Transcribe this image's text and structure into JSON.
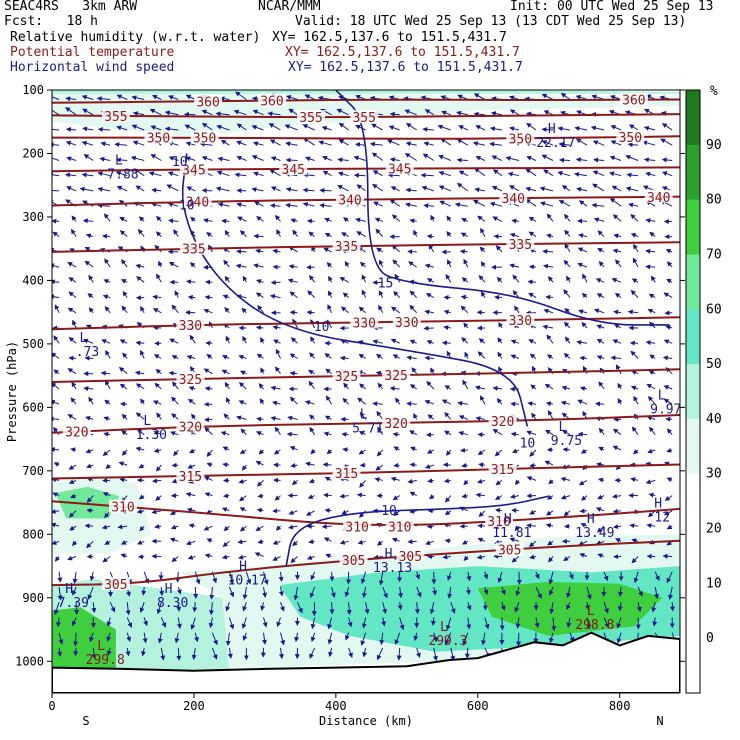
{
  "header": {
    "model": "SEAC4RS   3km ARW",
    "source": "NCAR/MMM",
    "init": "Init: 00 UTC Wed 25 Sep 13",
    "fcst": "Fcst:   18 h",
    "valid": "Valid: 18 UTC Wed 25 Sep 13 (13 CDT Wed 25 Sep 13)",
    "rh_label": "Relative humidity (w.r.t. water)",
    "rh_xy": "XY= 162.5,137.6 to 151.5,431.7",
    "theta_label": "Potential temperature",
    "theta_xy": "XY= 162.5,137.6 to 151.5,431.7",
    "wind_label": "Horizontal wind speed",
    "wind_xy": "XY= 162.5,137.6 to 151.5,431.7"
  },
  "colors": {
    "theta": "#8b1a1a",
    "wind": "#1a1a8c",
    "rh_bins": [
      "#ffffff",
      "#ffffff",
      "#ffffff",
      "#ffffff",
      "#e3f8f0",
      "#b4f2de",
      "#62e6c4",
      "#72e89a",
      "#3ece3e",
      "#2ca02c",
      "#1e7a1e"
    ]
  },
  "chart_data": {
    "type": "cross-section",
    "x_axis": {
      "label": "Distance (km)",
      "range": [
        0,
        885
      ],
      "ticks": [
        0,
        200,
        400,
        600,
        800
      ],
      "left_end": "S",
      "right_end": "N"
    },
    "y_axis": {
      "label": "Pressure (hPa)",
      "range": [
        1050,
        100
      ],
      "ticks": [
        100,
        200,
        300,
        400,
        500,
        600,
        700,
        800,
        900,
        1000
      ]
    },
    "colorbar": {
      "unit": "%",
      "ticks": [
        0,
        10,
        20,
        30,
        40,
        50,
        60,
        70,
        80,
        90
      ]
    },
    "potential_temperature": {
      "contours": [
        {
          "level": 360,
          "points": [
            [
              0,
              120
            ],
            [
              200,
              118
            ],
            [
              450,
              115
            ],
            [
              700,
              116
            ],
            [
              885,
              115
            ]
          ],
          "labels": [
            {
              "text": "360",
              "x": 220
            },
            {
              "text": "360",
              "x": 310
            },
            {
              "text": "360",
              "x": 820
            }
          ]
        },
        {
          "level": 355,
          "points": [
            [
              0,
              140
            ],
            [
              200,
              142
            ],
            [
              430,
              143
            ],
            [
              700,
              140
            ],
            [
              885,
              138
            ]
          ],
          "labels": [
            {
              "text": "355",
              "x": 90
            },
            {
              "text": "355",
              "x": 365
            },
            {
              "text": "355",
              "x": 440
            }
          ]
        },
        {
          "level": 350,
          "points": [
            [
              0,
              175
            ],
            [
              200,
              175
            ],
            [
              500,
              177
            ],
            [
              700,
              176
            ],
            [
              885,
              173
            ]
          ],
          "labels": [
            {
              "text": "350",
              "x": 150
            },
            {
              "text": "350",
              "x": 215
            },
            {
              "text": "350",
              "x": 660
            },
            {
              "text": "350",
              "x": 815
            }
          ]
        },
        {
          "level": 345,
          "points": [
            [
              0,
              228
            ],
            [
              200,
              225
            ],
            [
              450,
              224
            ],
            [
              885,
              222
            ]
          ],
          "labels": [
            {
              "text": "345",
              "x": 200
            },
            {
              "text": "345",
              "x": 340
            },
            {
              "text": "345",
              "x": 490
            }
          ]
        },
        {
          "level": 340,
          "points": [
            [
              0,
              282
            ],
            [
              200,
              276
            ],
            [
              450,
              272
            ],
            [
              700,
              270
            ],
            [
              885,
              268
            ]
          ],
          "labels": [
            {
              "text": "340",
              "x": 205
            },
            {
              "text": "340",
              "x": 420
            },
            {
              "text": "340",
              "x": 650
            },
            {
              "text": "340",
              "x": 855
            }
          ]
        },
        {
          "level": 335,
          "points": [
            [
              0,
              355
            ],
            [
              200,
              350
            ],
            [
              450,
              345
            ],
            [
              700,
              342
            ],
            [
              885,
              340
            ]
          ],
          "labels": [
            {
              "text": "335",
              "x": 200
            },
            {
              "text": "335",
              "x": 415
            },
            {
              "text": "335",
              "x": 660
            }
          ]
        },
        {
          "level": 330,
          "points": [
            [
              0,
              477
            ],
            [
              200,
              470
            ],
            [
              450,
              466
            ],
            [
              700,
              462
            ],
            [
              885,
              458
            ]
          ],
          "labels": [
            {
              "text": "330",
              "x": 195
            },
            {
              "text": "330",
              "x": 440
            },
            {
              "text": "330",
              "x": 500
            },
            {
              "text": "330",
              "x": 660
            }
          ]
        },
        {
          "level": 325,
          "points": [
            [
              0,
              560
            ],
            [
              200,
              555
            ],
            [
              450,
              550
            ],
            [
              700,
              545
            ],
            [
              885,
              540
            ]
          ],
          "labels": [
            {
              "text": "325",
              "x": 195
            },
            {
              "text": "325",
              "x": 415
            },
            {
              "text": "325",
              "x": 485
            }
          ]
        },
        {
          "level": 320,
          "points": [
            [
              0,
              640
            ],
            [
              200,
              630
            ],
            [
              450,
              625
            ],
            [
              700,
              620
            ],
            [
              885,
              612
            ]
          ],
          "labels": [
            {
              "text": "320",
              "x": 35
            },
            {
              "text": "320",
              "x": 195
            },
            {
              "text": "320",
              "x": 485
            },
            {
              "text": "320",
              "x": 635
            }
          ]
        },
        {
          "level": 315,
          "points": [
            [
              0,
              712
            ],
            [
              200,
              708
            ],
            [
              450,
              703
            ],
            [
              700,
              695
            ],
            [
              885,
              690
            ]
          ],
          "labels": [
            {
              "text": "315",
              "x": 195
            },
            {
              "text": "315",
              "x": 415
            },
            {
              "text": "315",
              "x": 635
            }
          ]
        },
        {
          "level": 310,
          "points": [
            [
              0,
              748
            ],
            [
              200,
              765
            ],
            [
              450,
              790
            ],
            [
              700,
              775
            ],
            [
              885,
              760
            ]
          ],
          "labels": [
            {
              "text": "310",
              "x": 100
            },
            {
              "text": "310",
              "x": 430
            },
            {
              "text": "310",
              "x": 490
            },
            {
              "text": "310",
              "x": 630
            }
          ]
        },
        {
          "level": 305,
          "points": [
            [
              0,
              880
            ],
            [
              120,
              878
            ],
            [
              250,
              858
            ],
            [
              450,
              838
            ],
            [
              700,
              820
            ],
            [
              885,
              810
            ]
          ],
          "labels": [
            {
              "text": "305",
              "x": 90
            },
            {
              "text": "305",
              "x": 425
            },
            {
              "text": "305",
              "x": 505
            },
            {
              "text": "305",
              "x": 645
            }
          ]
        }
      ],
      "extrema": [
        {
          "type": "L",
          "value": "299.3",
          "x": 558,
          "p": 965
        },
        {
          "type": "L",
          "value": "298.8",
          "x": 765,
          "p": 940
        },
        {
          "type": "L",
          "value": "299.8",
          "x": 75,
          "p": 995
        }
      ]
    },
    "wind_speed": {
      "contours": [
        {
          "level": 10,
          "points": [
            [
              190,
              200
            ],
            [
              180,
              290
            ],
            [
              230,
              400
            ],
            [
              330,
              480
            ],
            [
              500,
              510
            ],
            [
              650,
              540
            ],
            [
              670,
              630
            ]
          ],
          "labels": [
            {
              "text": "10",
              "x": 180,
              "p": 212
            },
            {
              "text": "10",
              "x": 190,
              "p": 280
            },
            {
              "text": "10",
              "x": 380,
              "p": 472
            },
            {
              "text": "10",
              "x": 670,
              "p": 655
            }
          ]
        },
        {
          "level": 15,
          "points": [
            [
              400,
              100
            ],
            [
              445,
              150
            ],
            [
              445,
              380
            ],
            [
              500,
              405
            ],
            [
              650,
              420
            ],
            [
              770,
              470
            ],
            [
              870,
              470
            ]
          ],
          "labels": [
            {
              "text": "15",
              "x": 470,
              "p": 403
            }
          ]
        },
        {
          "level": 10,
          "points": [
            [
              330,
              850
            ],
            [
              340,
              790
            ],
            [
              420,
              765
            ],
            [
              560,
              760
            ],
            [
              640,
              755
            ],
            [
              700,
              740
            ]
          ],
          "labels": [
            {
              "text": "10",
              "x": 475,
              "p": 762
            }
          ]
        }
      ],
      "extrema": [
        {
          "type": "L",
          "value": "7.88",
          "x": 100,
          "p": 230
        },
        {
          "type": "L",
          "value": ".73",
          "x": 50,
          "p": 510
        },
        {
          "type": "L",
          "value": "1.30",
          "x": 140,
          "p": 640
        },
        {
          "type": "L",
          "value": "5.71",
          "x": 445,
          "p": 630
        },
        {
          "type": "L",
          "value": "9.75",
          "x": 725,
          "p": 650
        },
        {
          "type": "L",
          "value": "9.97",
          "x": 865,
          "p": 600
        },
        {
          "type": "H",
          "value": "22.17",
          "x": 710,
          "p": 180
        },
        {
          "type": "H",
          "value": "7.39",
          "x": 30,
          "p": 905
        },
        {
          "type": "H",
          "value": "8.30",
          "x": 170,
          "p": 905
        },
        {
          "type": "H",
          "value": "10.17",
          "x": 275,
          "p": 870
        },
        {
          "type": "H",
          "value": "11.81",
          "x": 648,
          "p": 795
        },
        {
          "type": "H",
          "value": "13.49",
          "x": 765,
          "p": 795
        },
        {
          "type": "H",
          "value": "12",
          "x": 860,
          "p": 770
        },
        {
          "type": "H",
          "value": "13.13",
          "x": 480,
          "p": 850
        }
      ]
    },
    "relative_humidity_regions": [
      {
        "percent": 35,
        "points": [
          [
            0,
            720
          ],
          [
            60,
            705
          ],
          [
            120,
            720
          ],
          [
            140,
            800
          ],
          [
            80,
            830
          ],
          [
            0,
            830
          ]
        ]
      },
      {
        "percent": 65,
        "points": [
          [
            5,
            735
          ],
          [
            50,
            725
          ],
          [
            95,
            740
          ],
          [
            80,
            775
          ],
          [
            20,
            775
          ]
        ]
      },
      {
        "percent": 45,
        "points": [
          [
            0,
            880
          ],
          [
            60,
            870
          ],
          [
            120,
            880
          ],
          [
            240,
            900
          ],
          [
            250,
            1015
          ],
          [
            0,
            1015
          ]
        ]
      },
      {
        "percent": 75,
        "points": [
          [
            0,
            920
          ],
          [
            40,
            915
          ],
          [
            90,
            950
          ],
          [
            90,
            1015
          ],
          [
            0,
            1015
          ]
        ]
      },
      {
        "percent": 35,
        "points": [
          [
            180,
            860
          ],
          [
            300,
            850
          ],
          [
            420,
            840
          ],
          [
            560,
            820
          ],
          [
            700,
            805
          ],
          [
            885,
            800
          ],
          [
            885,
            980
          ],
          [
            700,
            990
          ],
          [
            540,
            1000
          ],
          [
            300,
            1010
          ],
          [
            250,
            1010
          ],
          [
            240,
            900
          ]
        ]
      },
      {
        "percent": 55,
        "points": [
          [
            320,
            880
          ],
          [
            460,
            860
          ],
          [
            600,
            850
          ],
          [
            760,
            860
          ],
          [
            885,
            850
          ],
          [
            885,
            960
          ],
          [
            720,
            975
          ],
          [
            540,
            985
          ],
          [
            420,
            960
          ],
          [
            350,
            930
          ]
        ]
      },
      {
        "percent": 70,
        "points": [
          [
            600,
            885
          ],
          [
            700,
            875
          ],
          [
            800,
            878
          ],
          [
            860,
            900
          ],
          [
            820,
            945
          ],
          [
            700,
            960
          ],
          [
            620,
            930
          ]
        ]
      },
      {
        "percent": 30,
        "points": [
          [
            0,
            100
          ],
          [
            300,
            100
          ],
          [
            500,
            108
          ],
          [
            885,
            110
          ],
          [
            885,
            125
          ],
          [
            600,
            132
          ],
          [
            300,
            160
          ],
          [
            200,
            175
          ],
          [
            0,
            150
          ]
        ]
      },
      {
        "percent": 45,
        "points": [
          [
            0,
            100
          ],
          [
            600,
            100
          ],
          [
            885,
            103
          ],
          [
            885,
            106
          ],
          [
            0,
            106
          ]
        ]
      },
      {
        "percent": 35,
        "points": [
          [
            330,
            845
          ],
          [
            500,
            830
          ],
          [
            700,
            815
          ],
          [
            885,
            805
          ],
          [
            885,
            820
          ],
          [
            600,
            835
          ],
          [
            400,
            850
          ]
        ]
      }
    ],
    "wind_arrows_note": "Horizontal wind vector field shown as blue arrows"
  }
}
